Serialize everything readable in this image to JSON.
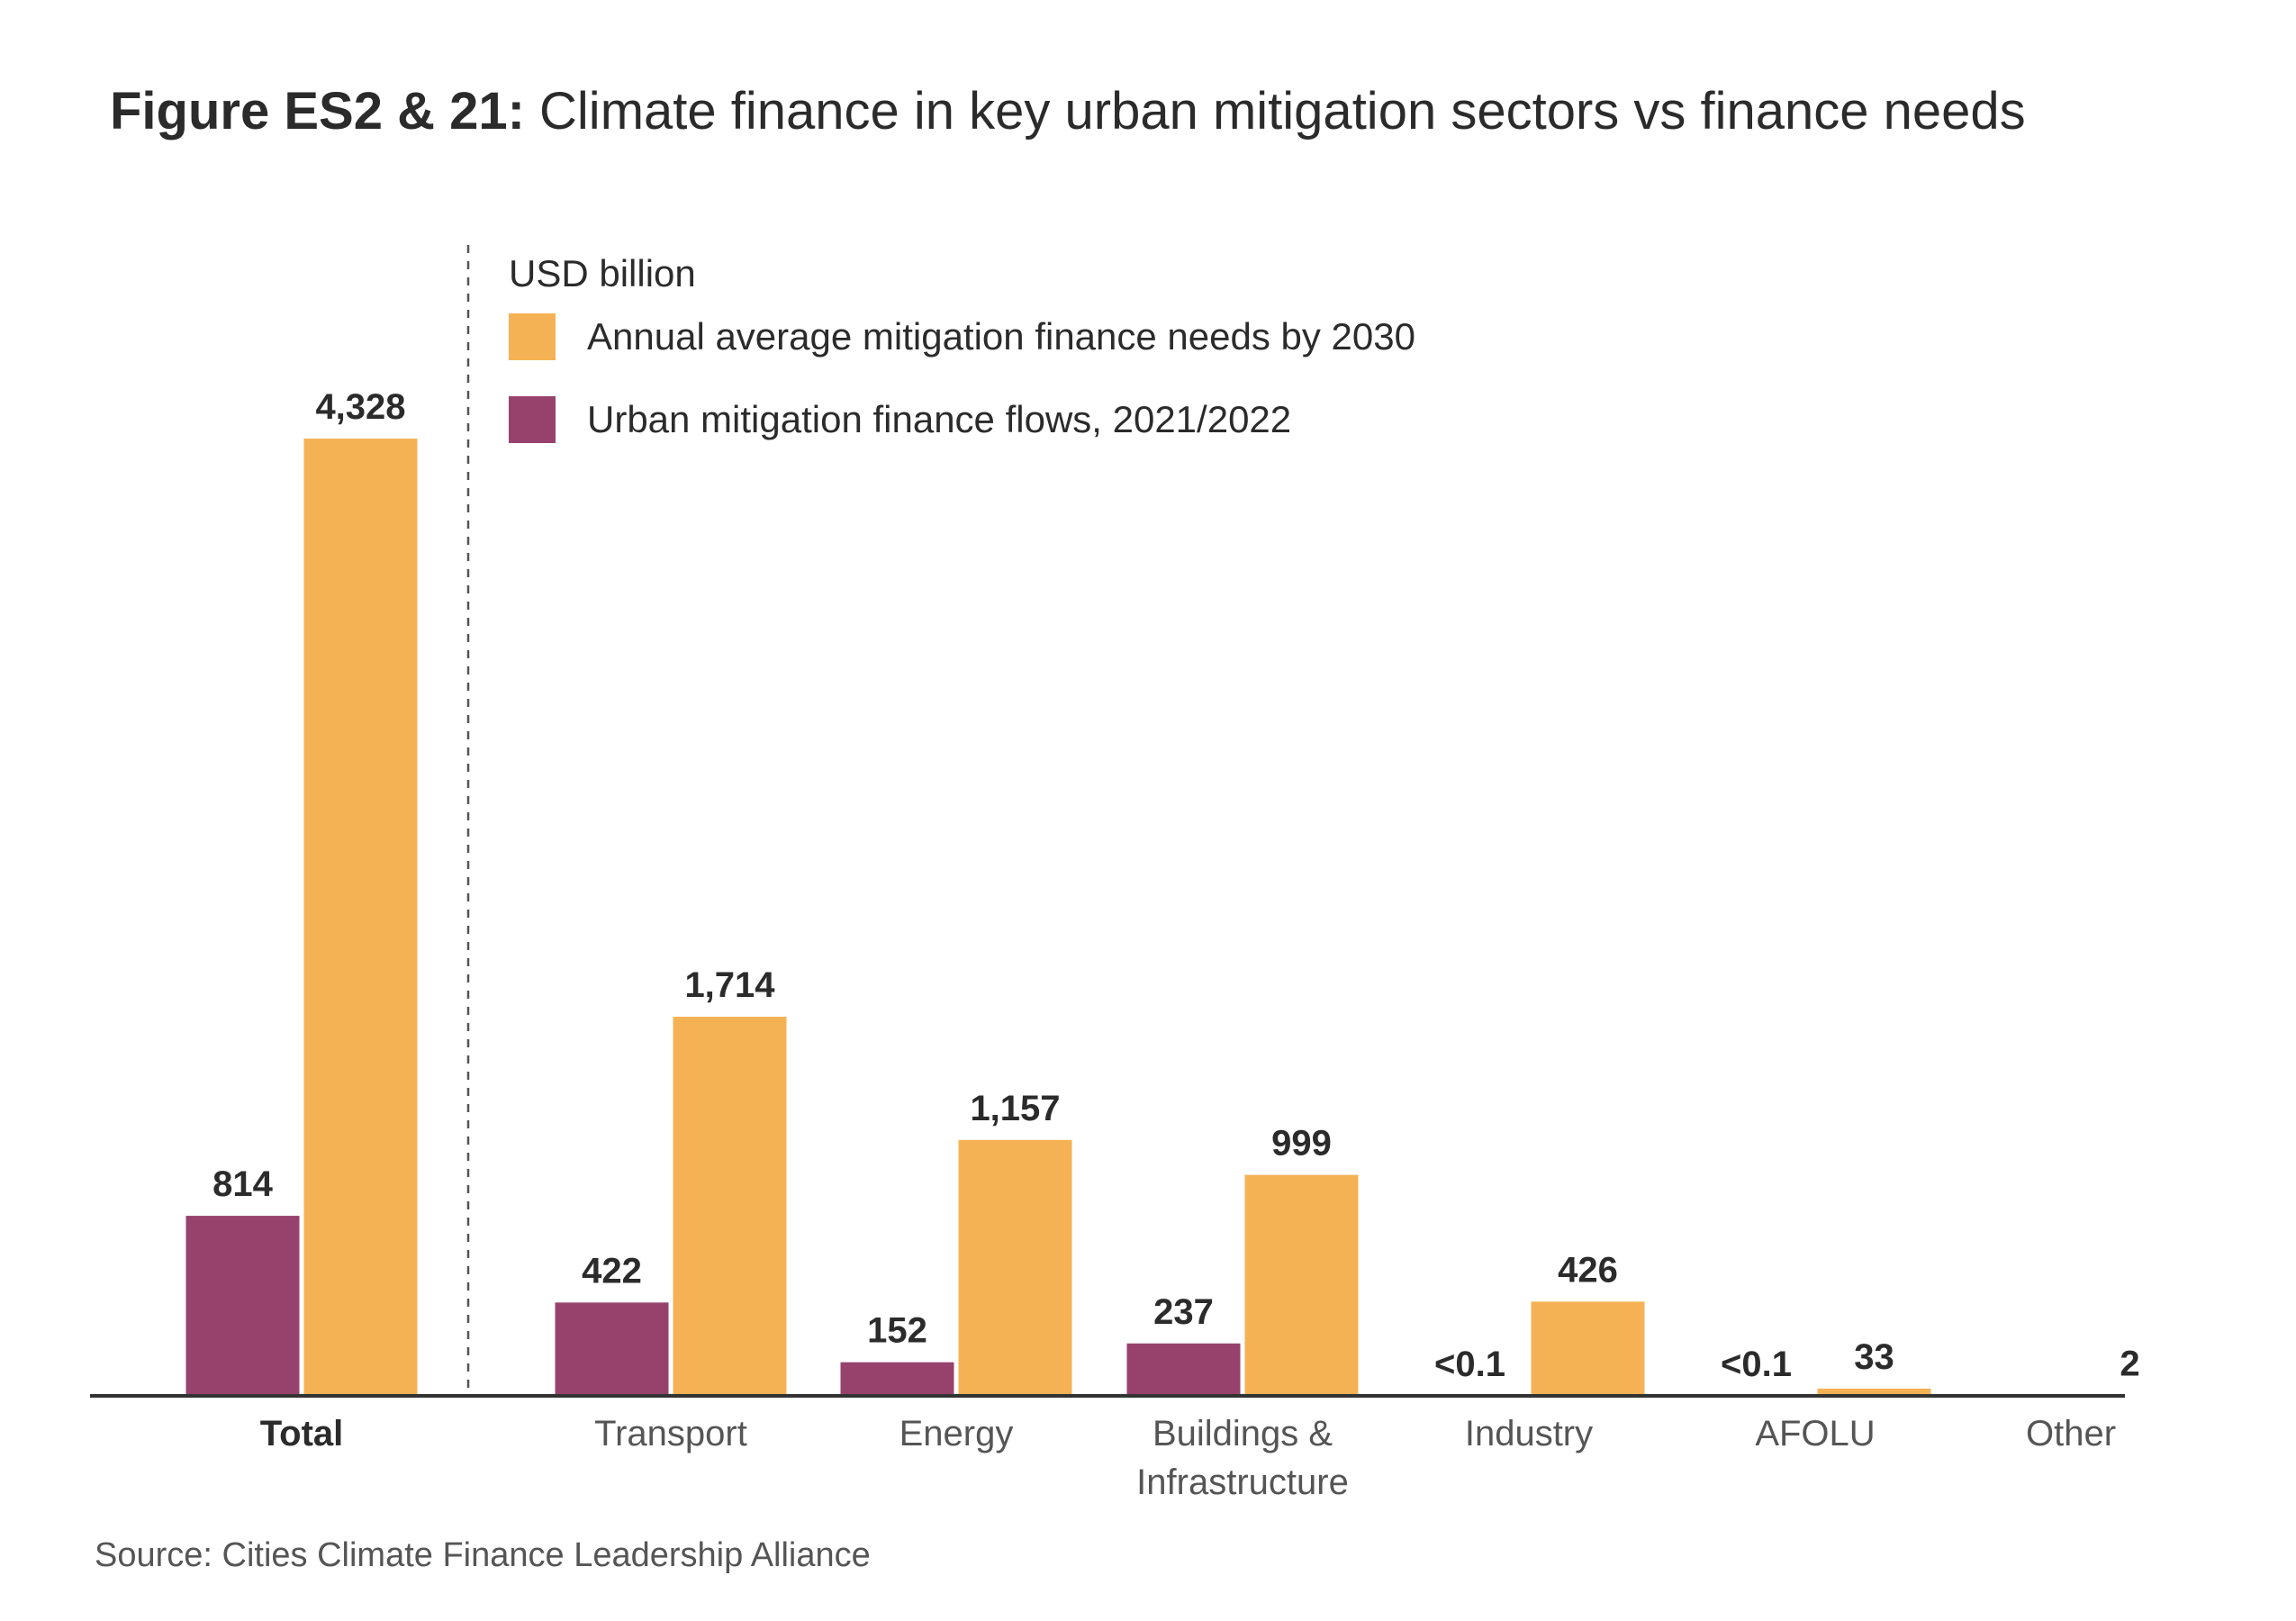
{
  "title": {
    "bold": "Figure ES2 & 21:",
    "rest": " Climate finance in key urban mitigation sectors vs finance needs"
  },
  "source": "Source: Cities Climate Finance Leadership Alliance",
  "colors": {
    "needs": "#F5B254",
    "flows": "#96426C",
    "text": "#2b2b2b",
    "axis": "#333333",
    "category_text": "#555555"
  },
  "chart_data": {
    "type": "bar",
    "unit_label": "USD billion",
    "categories": [
      [
        "Total"
      ],
      [
        "Transport"
      ],
      [
        "Energy"
      ],
      [
        "Buildings &",
        "Infrastructure"
      ],
      [
        "Industry"
      ],
      [
        "AFOLU"
      ],
      [
        "Other"
      ]
    ],
    "category_bold": [
      true,
      false,
      false,
      false,
      false,
      false,
      false
    ],
    "series": [
      {
        "name": "Urban mitigation finance flows, 2021/2022",
        "key": "flows",
        "values": [
          814,
          422,
          152,
          237,
          0.05,
          0.05,
          null
        ],
        "labels": [
          "814",
          "422",
          "152",
          "237",
          "<0.1",
          "<0.1",
          ""
        ]
      },
      {
        "name": "Annual average mitigation finance needs by 2030",
        "key": "needs",
        "values": [
          4328,
          1714,
          1157,
          999,
          426,
          33,
          2
        ],
        "labels": [
          "4,328",
          "1,714",
          "1,157",
          "999",
          "426",
          "33",
          "2"
        ]
      }
    ],
    "legend_order": [
      "needs",
      "flows"
    ],
    "legend_position": "top-left",
    "separator_after_category": 0,
    "ylim": [
      0,
      4328
    ],
    "grid": false
  }
}
